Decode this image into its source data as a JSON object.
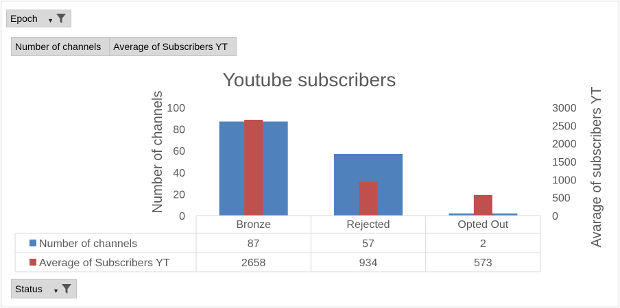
{
  "filters": {
    "epoch_label": "Epoch",
    "status_label": "Status"
  },
  "legend_buttons": [
    "Number of channels",
    "Average of Subscribers YT"
  ],
  "icons": {
    "filter": "filter-icon",
    "dropdown": "dropdown-arrow-icon"
  },
  "colors": {
    "series1": "#4F81BD",
    "series2": "#C0504D"
  },
  "chart_data": {
    "type": "bar",
    "title": "Youtube subscribers",
    "ylabel": "Number  of channels",
    "y2label": "Avarage of subscribers YT",
    "categories": [
      "Bronze",
      "Rejected",
      "Opted Out"
    ],
    "ylim": [
      0,
      100
    ],
    "y2lim": [
      0,
      3000
    ],
    "yticks": [
      0,
      20,
      40,
      60,
      80,
      100
    ],
    "y2ticks": [
      0,
      500,
      1000,
      1500,
      2000,
      2500,
      3000
    ],
    "series": [
      {
        "name": "Number of channels",
        "axis": "left",
        "values": [
          87,
          57,
          2
        ]
      },
      {
        "name": "Average of Subscribers YT",
        "axis": "right",
        "values": [
          2658,
          934,
          573
        ]
      }
    ],
    "data_table": true,
    "grid": false
  }
}
